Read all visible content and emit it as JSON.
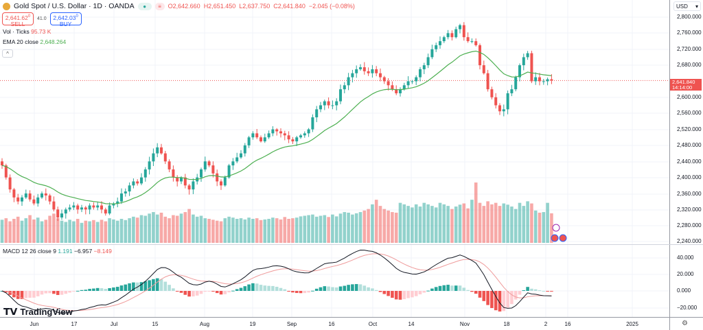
{
  "header": {
    "title": "Gold Spot / U.S. Dollar · 1D · OANDA",
    "open": "O2,642.660",
    "high": "H2,651.450",
    "low": "L2,637.750",
    "close": "C2,641.840",
    "change": "−2.045 (−0.08%)"
  },
  "trade": {
    "sell_price": "2,641.62",
    "sell_sup": "0",
    "sell_label": "SELL",
    "spread": "41.0",
    "buy_price": "2,642.03",
    "buy_sup": "0",
    "buy_label": "BUY"
  },
  "indicators": {
    "vol_label": "Vol · Ticks",
    "vol_value": "95.73 K",
    "ema_label": "EMA 20 close",
    "ema_value": "2,648.264",
    "macd_label": "MACD 12 26 close 9",
    "macd_hist": "1.191",
    "macd_line": "−6.957",
    "macd_signal": "−8.149"
  },
  "axis": {
    "currency": "USD",
    "price_ticks": [
      "2,800.000",
      "2,760.000",
      "2,720.000",
      "2,680.000",
      "2,600.000",
      "2,560.000",
      "2,520.000",
      "2,480.000",
      "2,440.000",
      "2,400.000",
      "2,360.000",
      "2,320.000",
      "2,280.000",
      "2,240.000"
    ],
    "macd_ticks": [
      "40.000",
      "20.000",
      "0.000",
      "−20.000"
    ],
    "last_price": "2,641.840",
    "countdown": "14:14:00"
  },
  "time_labels": [
    "Jun",
    "17",
    "Jul",
    "15",
    "Aug",
    "19",
    "Sep",
    "16",
    "Oct",
    "14",
    "Nov",
    "18",
    "2",
    "16",
    "2025"
  ],
  "brand": "TradingView",
  "colors": {
    "up": "#26a69a",
    "down": "#ef5350",
    "ema": "#4caf50"
  },
  "chart_data": {
    "type": "candlestick",
    "closes": [
      2430,
      2400,
      2370,
      2350,
      2340,
      2350,
      2360,
      2345,
      2335,
      2350,
      2360,
      2355,
      2340,
      2320,
      2300,
      2310,
      2320,
      2325,
      2330,
      2320,
      2325,
      2320,
      2330,
      2325,
      2330,
      2320,
      2310,
      2330,
      2335,
      2340,
      2360,
      2365,
      2380,
      2390,
      2385,
      2400,
      2420,
      2440,
      2460,
      2475,
      2460,
      2440,
      2420,
      2400,
      2390,
      2400,
      2380,
      2370,
      2390,
      2400,
      2420,
      2440,
      2430,
      2410,
      2390,
      2380,
      2400,
      2430,
      2440,
      2450,
      2460,
      2480,
      2500,
      2510,
      2500,
      2490,
      2500,
      2510,
      2520,
      2515,
      2510,
      2505,
      2495,
      2490,
      2500,
      2505,
      2510,
      2520,
      2550,
      2570,
      2580,
      2590,
      2580,
      2580,
      2590,
      2620,
      2630,
      2650,
      2660,
      2670,
      2675,
      2665,
      2660,
      2670,
      2660,
      2650,
      2640,
      2630,
      2620,
      2610,
      2620,
      2630,
      2640,
      2640,
      2650,
      2670,
      2680,
      2700,
      2720,
      2730,
      2740,
      2750,
      2760,
      2750,
      2770,
      2780,
      2750,
      2740,
      2740,
      2730,
      2680,
      2660,
      2620,
      2600,
      2580,
      2565,
      2570,
      2610,
      2620,
      2650,
      2680,
      2700,
      2710,
      2640,
      2650,
      2640,
      2640,
      2645,
      2642
    ],
    "volumes_k": [
      75,
      80,
      70,
      78,
      85,
      72,
      80,
      90,
      76,
      82,
      70,
      75,
      88,
      95,
      80,
      72,
      68,
      75,
      70,
      78,
      65,
      72,
      70,
      74,
      68,
      75,
      70,
      80,
      76,
      72,
      78,
      74,
      80,
      85,
      82,
      90,
      88,
      95,
      100,
      92,
      98,
      85,
      80,
      90,
      88,
      95,
      100,
      110,
      92,
      85,
      88,
      80,
      78,
      75,
      72,
      70,
      80,
      85,
      82,
      78,
      80,
      76,
      82,
      78,
      80,
      74,
      76,
      78,
      82,
      80,
      76,
      84,
      78,
      80,
      82,
      86,
      88,
      90,
      92,
      85,
      88,
      90,
      84,
      92,
      86,
      95,
      100,
      98,
      92,
      96,
      100,
      105,
      110,
      125,
      140,
      120,
      110,
      105,
      100,
      98,
      130,
      125,
      120,
      115,
      125,
      118,
      130,
      125,
      120,
      115,
      130,
      125,
      120,
      110,
      118,
      124,
      128,
      112,
      140,
      196,
      130,
      120,
      135,
      125,
      130,
      120,
      128,
      124,
      118,
      110,
      130,
      120,
      135,
      128,
      105,
      98,
      100,
      130,
      96
    ],
    "price_range": [
      2230,
      2812
    ],
    "macd_range": [
      -28,
      45
    ]
  }
}
